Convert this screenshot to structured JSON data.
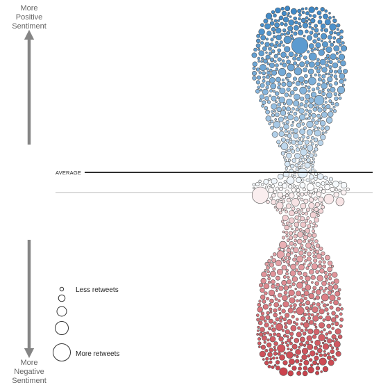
{
  "chart_data": {
    "type": "scatter",
    "subtype": "beeswarm",
    "title": "",
    "xlabel": "",
    "ylabel": "",
    "axis_top": [
      "More",
      "Positive",
      "Sentiment"
    ],
    "axis_bottom": [
      "More",
      "Negative",
      "Sentiment"
    ],
    "reference_lines": [
      {
        "label": "AVERAGE",
        "style": "black"
      },
      {
        "label": "",
        "style": "light-gray"
      }
    ],
    "legend": {
      "encoding": "circle size = retweets",
      "min_label": "Less retweets",
      "max_label": "More retweets",
      "sizes": [
        1,
        2,
        3,
        4,
        5
      ]
    },
    "colors": {
      "positive": "#3a86c6",
      "neutral": "#ffffff",
      "negative": "#c9404a",
      "outline": "#555555",
      "arrow": "#858585"
    },
    "highlighted_tweets": [
      {
        "sentiment": 0.78,
        "retweets": 5
      },
      {
        "sentiment": 0.48,
        "retweets": 3
      },
      {
        "sentiment": 0.08,
        "retweets": 3
      },
      {
        "sentiment": -0.04,
        "retweets": 5
      },
      {
        "sentiment": -0.06,
        "retweets": 3
      },
      {
        "sentiment": -0.38,
        "retweets": 2
      },
      {
        "sentiment": -0.52,
        "retweets": 2
      }
    ]
  }
}
